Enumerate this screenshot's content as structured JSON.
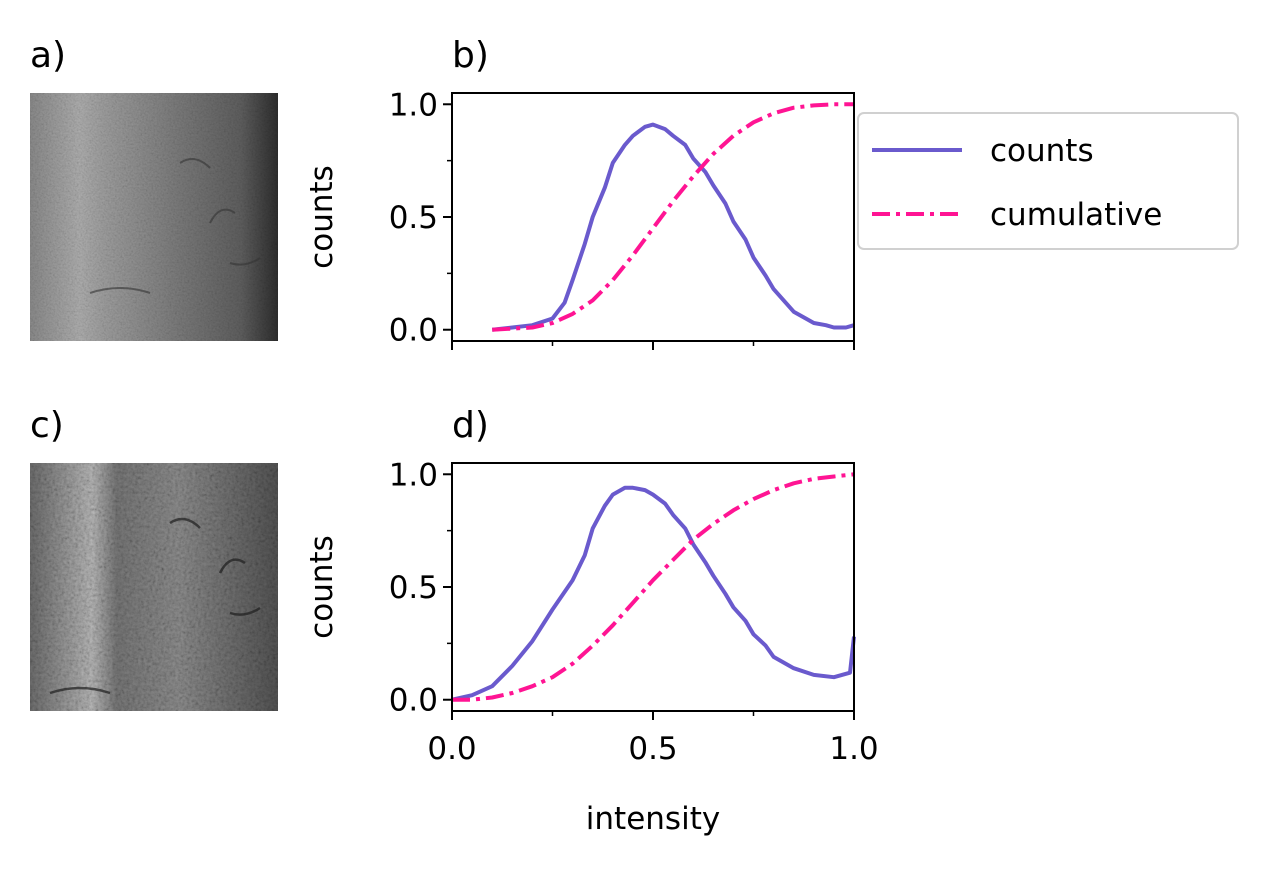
{
  "figure": {
    "panel_labels": {
      "a": "a)",
      "b": "b)",
      "c": "c)",
      "d": "d)"
    },
    "images": [
      {
        "panel": "a",
        "description_icon": "grayscale-texture-image"
      },
      {
        "panel": "c",
        "description_icon": "grayscale-texture-image"
      }
    ],
    "colors": {
      "counts": "#6a5acd",
      "cumulative": "#ff1493"
    }
  },
  "chart_data": [
    {
      "panel": "b",
      "type": "line",
      "title": "b)",
      "xlabel": "",
      "ylabel": "counts",
      "xlim": [
        0.0,
        1.0
      ],
      "ylim": [
        -0.05,
        1.05
      ],
      "xticks": [
        0.0,
        0.5,
        1.0
      ],
      "xtick_labels_visible": false,
      "yticks": [
        0.0,
        0.5,
        1.0
      ],
      "ytick_labels": [
        "0.0",
        "0.5",
        "1.0"
      ],
      "legend": {
        "position": "outside-right",
        "entries": [
          "counts",
          "cumulative"
        ]
      },
      "series": [
        {
          "name": "counts",
          "style": "solid",
          "color": "#6a5acd",
          "x": [
            0.1,
            0.15,
            0.2,
            0.25,
            0.28,
            0.3,
            0.33,
            0.35,
            0.38,
            0.4,
            0.43,
            0.45,
            0.48,
            0.5,
            0.53,
            0.55,
            0.58,
            0.6,
            0.63,
            0.65,
            0.68,
            0.7,
            0.73,
            0.75,
            0.78,
            0.8,
            0.83,
            0.85,
            0.88,
            0.9,
            0.93,
            0.95,
            0.98,
            1.0
          ],
          "y": [
            0.0,
            0.01,
            0.02,
            0.05,
            0.12,
            0.22,
            0.38,
            0.5,
            0.63,
            0.74,
            0.82,
            0.86,
            0.9,
            0.91,
            0.89,
            0.86,
            0.82,
            0.76,
            0.7,
            0.64,
            0.56,
            0.48,
            0.4,
            0.32,
            0.24,
            0.18,
            0.12,
            0.08,
            0.05,
            0.03,
            0.02,
            0.01,
            0.01,
            0.02
          ]
        },
        {
          "name": "cumulative",
          "style": "dashdot",
          "color": "#ff1493",
          "x": [
            0.1,
            0.2,
            0.25,
            0.3,
            0.35,
            0.4,
            0.45,
            0.5,
            0.55,
            0.6,
            0.65,
            0.7,
            0.75,
            0.8,
            0.85,
            0.9,
            0.95,
            1.0
          ],
          "y": [
            0.0,
            0.01,
            0.03,
            0.07,
            0.13,
            0.22,
            0.33,
            0.45,
            0.57,
            0.68,
            0.78,
            0.86,
            0.92,
            0.96,
            0.985,
            0.995,
            1.0,
            1.0
          ]
        }
      ]
    },
    {
      "panel": "d",
      "type": "line",
      "title": "d)",
      "xlabel": "intensity",
      "ylabel": "counts",
      "xlim": [
        0.0,
        1.0
      ],
      "ylim": [
        -0.05,
        1.05
      ],
      "xticks": [
        0.0,
        0.5,
        1.0
      ],
      "xtick_labels": [
        "0.0",
        "0.5",
        "1.0"
      ],
      "yticks": [
        0.0,
        0.5,
        1.0
      ],
      "ytick_labels": [
        "0.0",
        "0.5",
        "1.0"
      ],
      "series": [
        {
          "name": "counts",
          "style": "solid",
          "color": "#6a5acd",
          "x": [
            0.0,
            0.05,
            0.1,
            0.15,
            0.2,
            0.25,
            0.3,
            0.33,
            0.35,
            0.38,
            0.4,
            0.43,
            0.45,
            0.48,
            0.5,
            0.53,
            0.55,
            0.58,
            0.6,
            0.63,
            0.65,
            0.68,
            0.7,
            0.73,
            0.75,
            0.78,
            0.8,
            0.85,
            0.9,
            0.95,
            0.99,
            1.0
          ],
          "y": [
            0.0,
            0.02,
            0.06,
            0.15,
            0.26,
            0.4,
            0.53,
            0.64,
            0.76,
            0.86,
            0.91,
            0.94,
            0.94,
            0.93,
            0.91,
            0.87,
            0.82,
            0.76,
            0.69,
            0.61,
            0.55,
            0.47,
            0.41,
            0.35,
            0.29,
            0.24,
            0.19,
            0.14,
            0.11,
            0.1,
            0.12,
            0.28
          ]
        },
        {
          "name": "cumulative",
          "style": "dashdot",
          "color": "#ff1493",
          "x": [
            0.0,
            0.05,
            0.1,
            0.15,
            0.2,
            0.25,
            0.3,
            0.35,
            0.4,
            0.45,
            0.5,
            0.55,
            0.6,
            0.65,
            0.7,
            0.75,
            0.8,
            0.85,
            0.9,
            0.95,
            1.0
          ],
          "y": [
            0.0,
            0.0,
            0.01,
            0.03,
            0.06,
            0.1,
            0.16,
            0.24,
            0.33,
            0.43,
            0.53,
            0.62,
            0.71,
            0.78,
            0.84,
            0.89,
            0.93,
            0.96,
            0.98,
            0.99,
            1.0
          ]
        }
      ]
    }
  ]
}
